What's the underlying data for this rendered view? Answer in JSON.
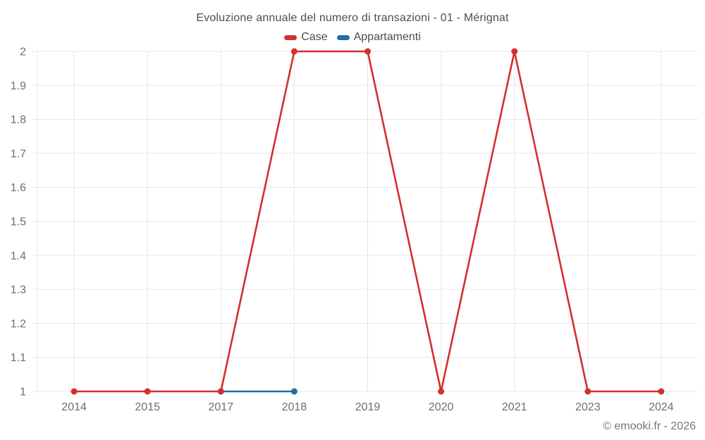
{
  "title": "Evoluzione annuale del numero di transazioni - 01 - Mérignat",
  "copyright": "© emooki.fr - 2026",
  "legend": {
    "items": [
      {
        "label": "Case",
        "color": "#d32f2f"
      },
      {
        "label": "Appartamenti",
        "color": "#1c6ea4"
      }
    ]
  },
  "colors": {
    "grid": "#e7e7e7",
    "tick_text": "#6e6e6e",
    "title_text": "#4d4d4d",
    "background": "#ffffff",
    "case_red": "#d32f2f",
    "appartamenti_blue": "#1c6ea4"
  },
  "chart_data": {
    "type": "line",
    "title": "Evoluzione annuale del numero di transazioni - 01 - Mérignat",
    "categories": [
      "2014",
      "2015",
      "2017",
      "2018",
      "2019",
      "2020",
      "2021",
      "2023",
      "2024"
    ],
    "series": [
      {
        "name": "Case",
        "color": "#d32f2f",
        "values": [
          1,
          1,
          1,
          2,
          2,
          1,
          2,
          1,
          1
        ]
      },
      {
        "name": "Appartamenti",
        "color": "#1c6ea4",
        "values": [
          null,
          null,
          1,
          1,
          null,
          null,
          null,
          null,
          null
        ]
      }
    ],
    "xlabel": "",
    "ylabel": "",
    "ylim": [
      1,
      2
    ],
    "yticks": [
      1,
      1.1,
      1.2,
      1.3,
      1.4,
      1.5,
      1.6,
      1.7,
      1.8,
      1.9,
      2
    ],
    "ytick_labels": [
      "1",
      "1.1",
      "1.2",
      "1.3",
      "1.4",
      "1.5",
      "1.6",
      "1.7",
      "1.8",
      "1.9",
      "2"
    ],
    "grid": true,
    "legend_position": "top"
  }
}
